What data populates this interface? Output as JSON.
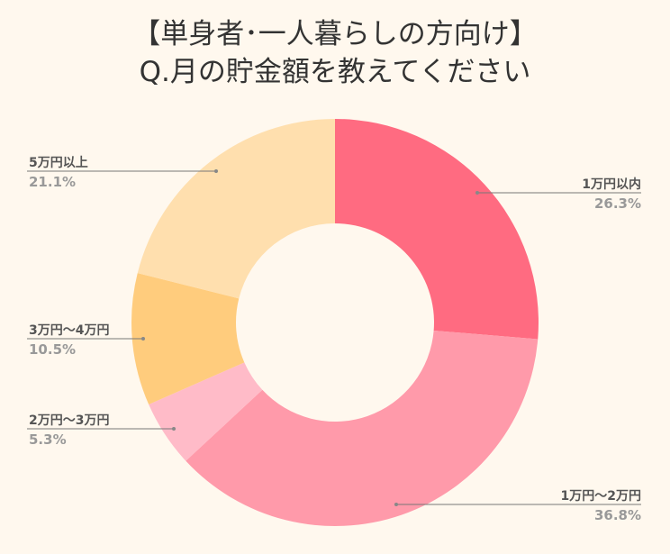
{
  "chart_data": {
    "type": "pie",
    "donut": true,
    "title": "【単身者･一人暮らしの方向け】",
    "subtitle": "Q.月の貯金額を教えてください",
    "categories": [
      "1万円以内",
      "1万円～2万円",
      "2万円～3万円",
      "3万円～4万円",
      "5万円以上"
    ],
    "values": [
      26.3,
      36.8,
      5.3,
      10.5,
      21.1
    ],
    "value_labels": [
      "26.3%",
      "36.8%",
      "5.3%",
      "10.5%",
      "21.1%"
    ],
    "colors": [
      "#ff6b81",
      "#ff9aaa",
      "#ffbbc8",
      "#ffcc7d",
      "#ffdfae"
    ],
    "start": "top",
    "direction": "clockwise",
    "legend": "none"
  }
}
